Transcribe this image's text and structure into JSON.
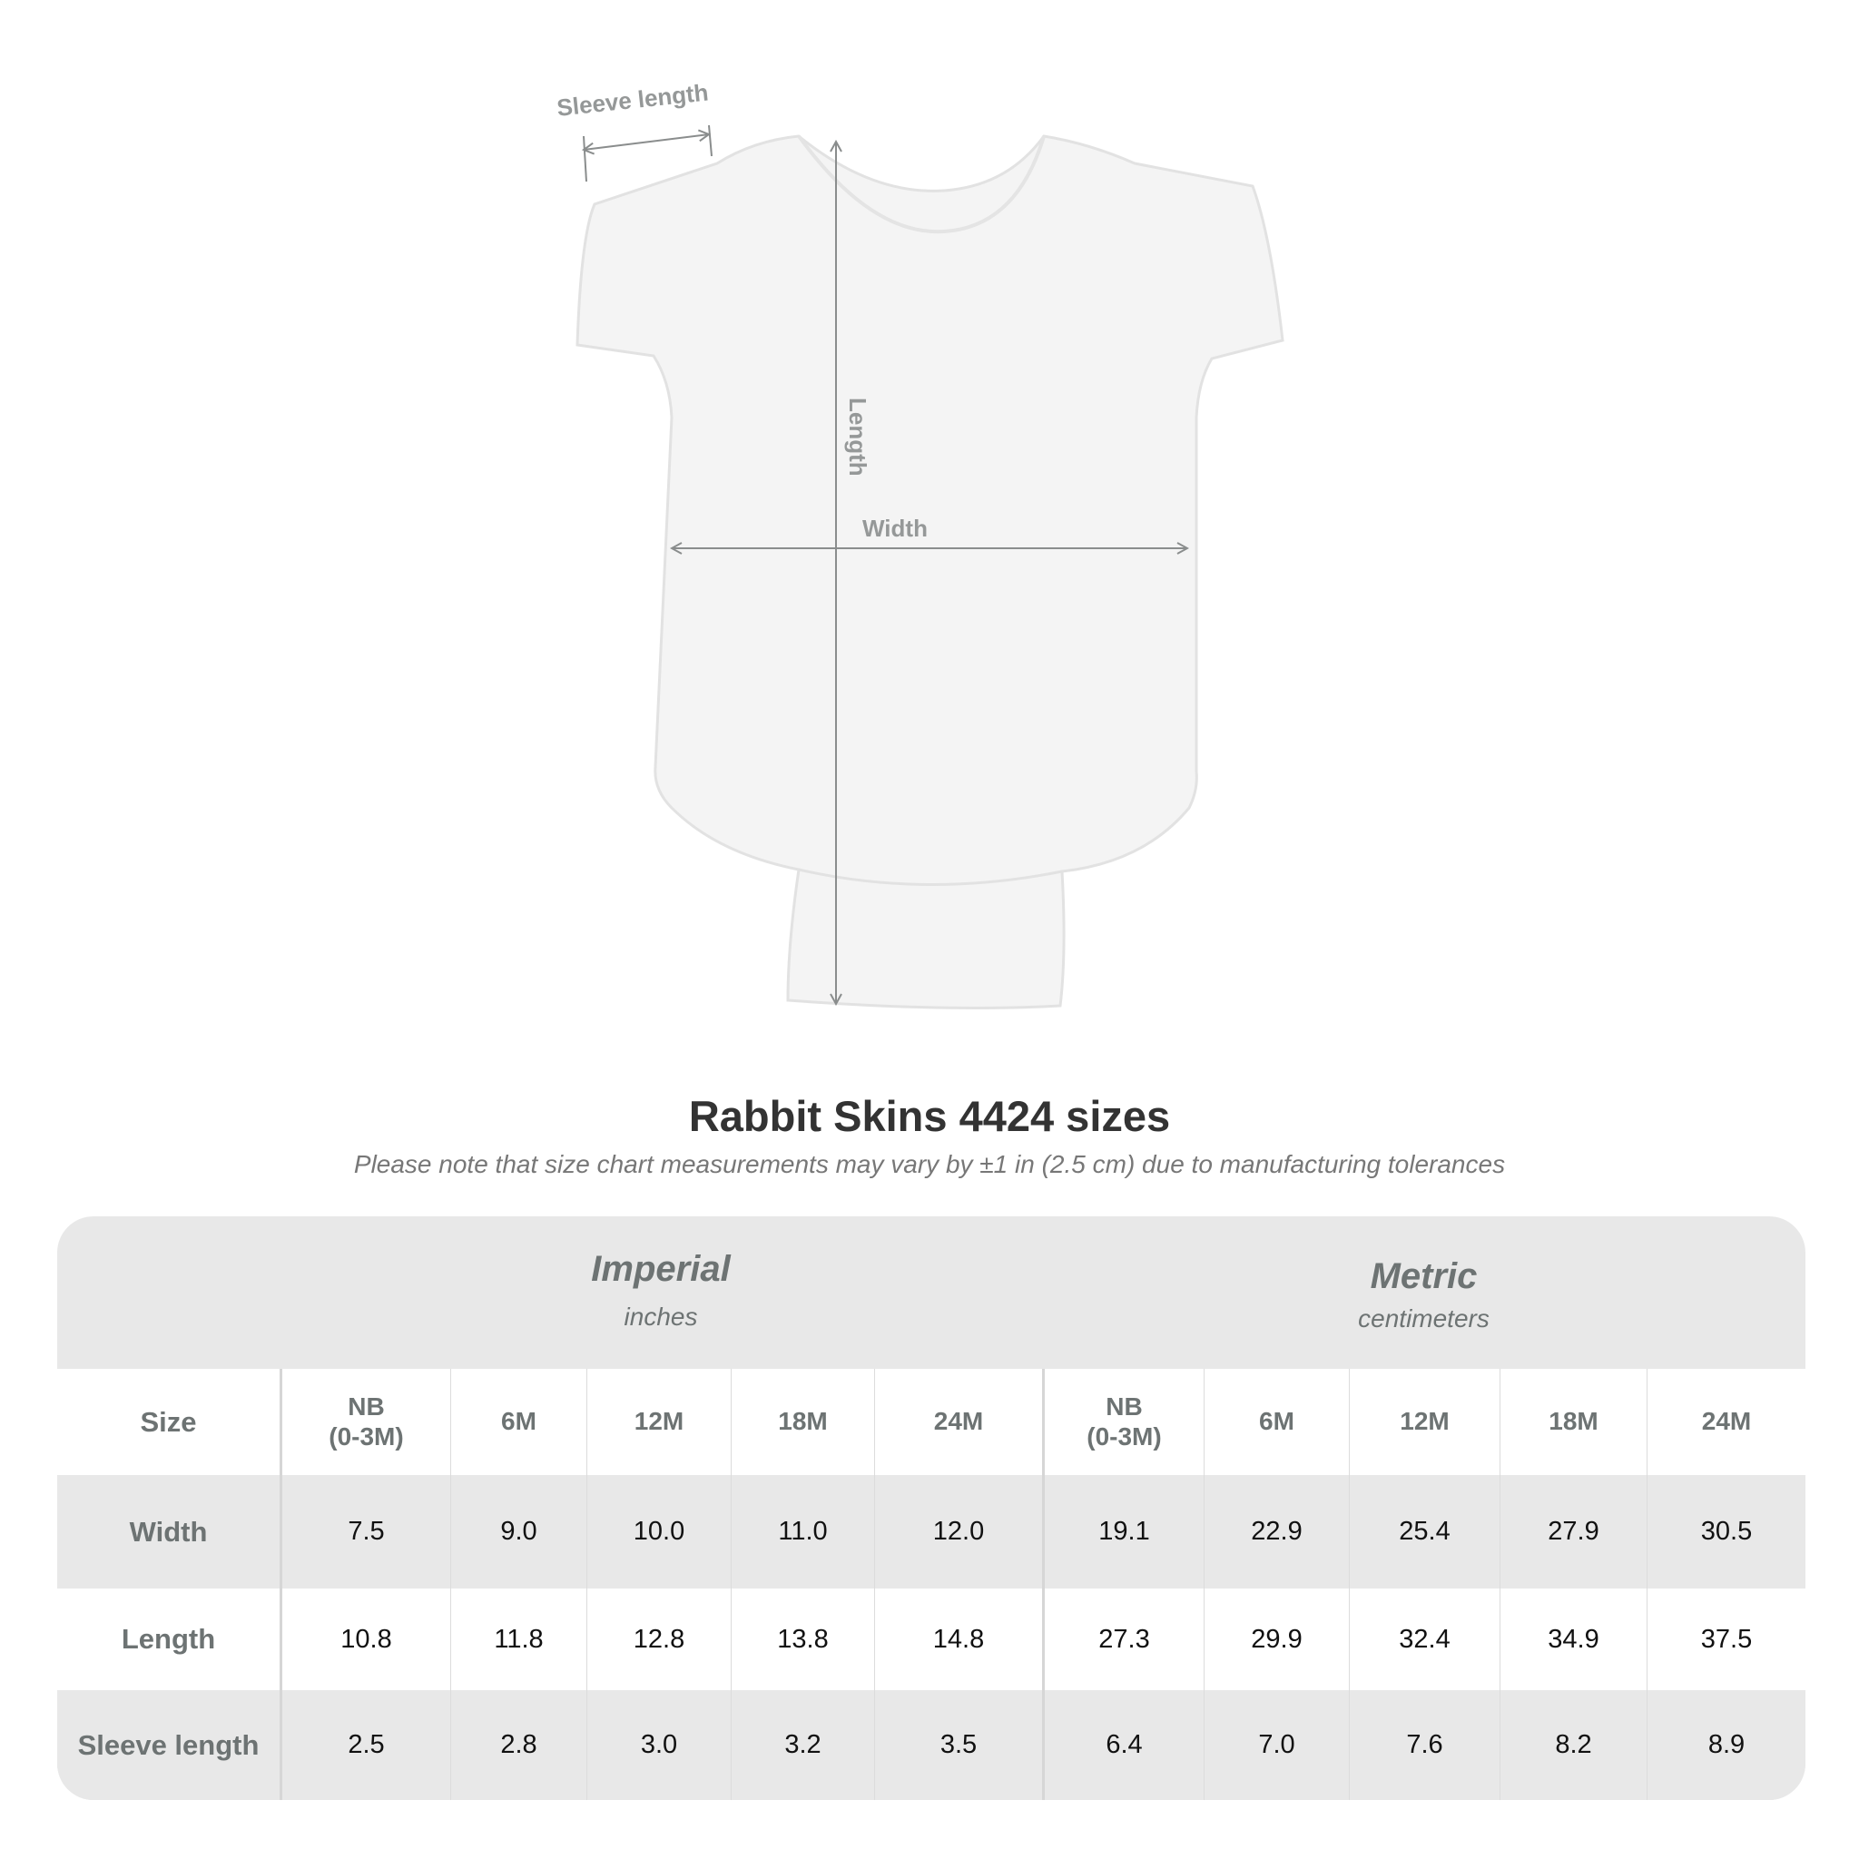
{
  "diagram": {
    "labels": {
      "sleeve_length": "Sleeve length",
      "length": "Length",
      "width": "Width"
    },
    "garment_color": "#f4f4f4",
    "measure_line_color": "#8a8d8d"
  },
  "title": "Rabbit Skins 4424 sizes",
  "subtitle": "Please note that size chart measurements may vary by ±1 in (2.5 cm) due to manufacturing tolerances",
  "table": {
    "imperial": {
      "label": "Imperial",
      "unit": "inches"
    },
    "metric": {
      "label": "Metric",
      "unit": "centimeters"
    },
    "size_label": "Size",
    "sizes": [
      "NB\n(0-3M)",
      "6M",
      "12M",
      "18M",
      "24M",
      "NB\n(0-3M)",
      "6M",
      "12M",
      "18M",
      "24M"
    ],
    "rows": [
      {
        "label": "Width",
        "values": [
          "7.5",
          "9.0",
          "10.0",
          "11.0",
          "12.0",
          "19.1",
          "22.9",
          "25.4",
          "27.9",
          "30.5"
        ]
      },
      {
        "label": "Length",
        "values": [
          "10.8",
          "11.8",
          "12.8",
          "13.8",
          "14.8",
          "27.3",
          "29.9",
          "32.4",
          "34.9",
          "37.5"
        ]
      },
      {
        "label": "Sleeve length",
        "values": [
          "2.5",
          "2.8",
          "3.0",
          "3.2",
          "3.5",
          "6.4",
          "7.0",
          "7.6",
          "8.2",
          "8.9"
        ]
      }
    ]
  }
}
